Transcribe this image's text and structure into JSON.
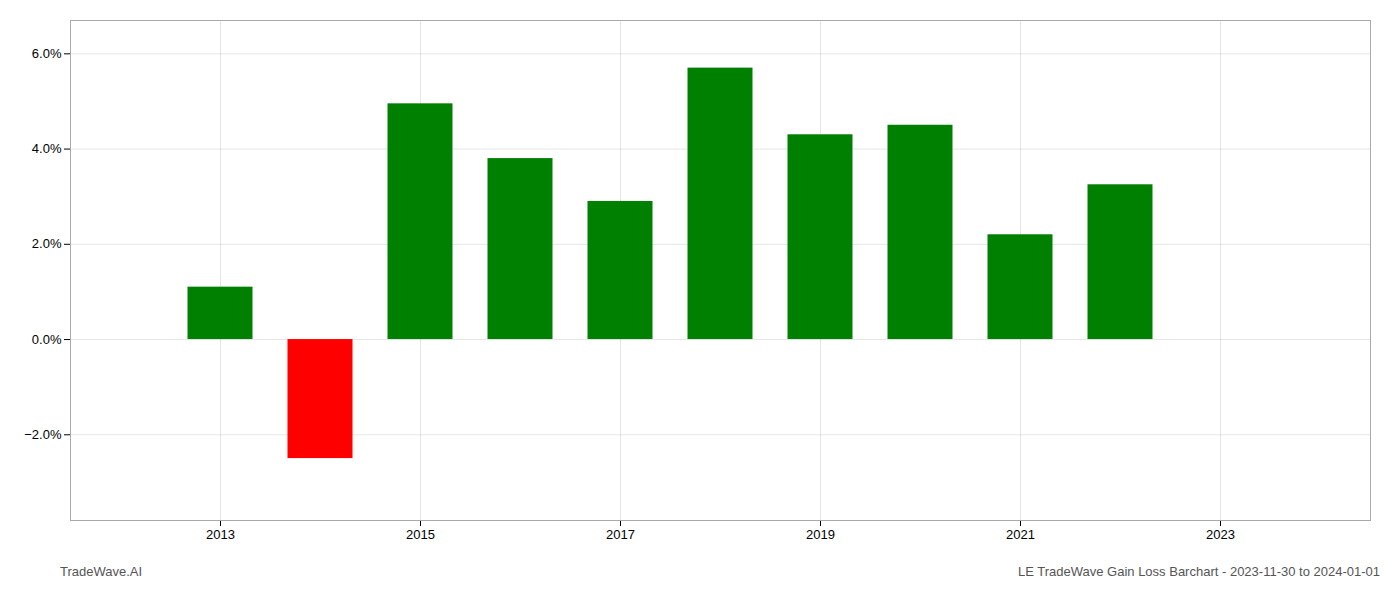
{
  "chart_data": {
    "type": "bar",
    "x": [
      2013,
      2014,
      2015,
      2016,
      2017,
      2018,
      2019,
      2020,
      2021,
      2022
    ],
    "values": [
      0.011,
      -0.025,
      0.0495,
      0.038,
      0.029,
      0.057,
      0.043,
      0.045,
      0.022,
      0.0325
    ],
    "colors": [
      "#008000",
      "#ff0000",
      "#008000",
      "#008000",
      "#008000",
      "#008000",
      "#008000",
      "#008000",
      "#008000",
      "#008000"
    ],
    "xlim": [
      2011.5,
      2024.5
    ],
    "xticks": [
      2013,
      2015,
      2017,
      2019,
      2021,
      2023
    ],
    "ylim": [
      -0.038,
      0.067
    ],
    "yticks": [
      {
        "value": -0.02,
        "label": "−2.0%"
      },
      {
        "value": 0.0,
        "label": "0.0%"
      },
      {
        "value": 0.02,
        "label": "2.0%"
      },
      {
        "value": 0.04,
        "label": "4.0%"
      },
      {
        "value": 0.06,
        "label": "6.0%"
      }
    ],
    "grid": true,
    "annotations": [
      "TradeWave.AI",
      "LE TradeWave Gain Loss Barchart - 2023-11-30 to 2024-01-01"
    ]
  }
}
